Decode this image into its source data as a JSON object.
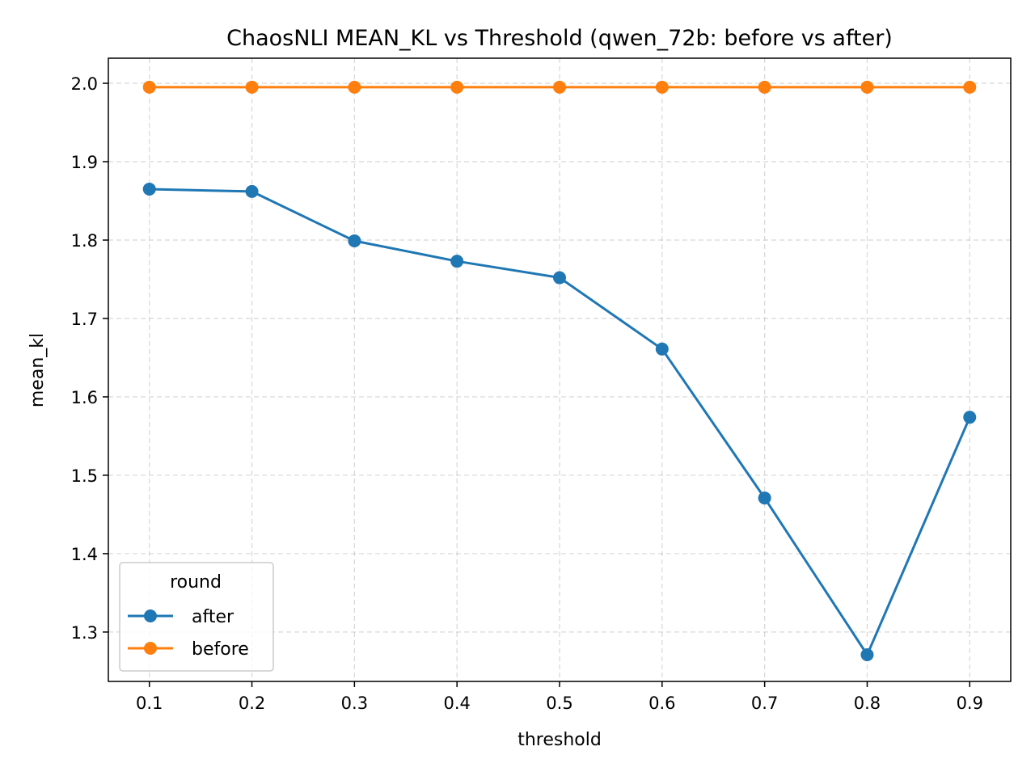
{
  "chart_data": {
    "type": "line",
    "title": "ChaosNLI MEAN_KL vs Threshold (qwen_72b: before vs after)",
    "xlabel": "threshold",
    "ylabel": "mean_kl",
    "x": [
      0.1,
      0.2,
      0.3,
      0.4,
      0.5,
      0.6,
      0.7,
      0.8,
      0.9
    ],
    "x_tick_labels": [
      "0.1",
      "0.2",
      "0.3",
      "0.4",
      "0.5",
      "0.6",
      "0.7",
      "0.8",
      "0.9"
    ],
    "xlim": [
      0.06,
      0.94
    ],
    "y_ticks": [
      1.3,
      1.4,
      1.5,
      1.6,
      1.7,
      1.8,
      1.9,
      2.0
    ],
    "y_tick_labels": [
      "1.3",
      "1.4",
      "1.5",
      "1.6",
      "1.7",
      "1.8",
      "1.9",
      "2.0"
    ],
    "ylim": [
      1.237,
      2.032
    ],
    "grid": true,
    "legend": {
      "title": "round",
      "placement": "lower-left"
    },
    "series": [
      {
        "name": "after",
        "color": "#1f77b4",
        "marker": "circle",
        "values": [
          1.865,
          1.862,
          1.799,
          1.773,
          1.752,
          1.661,
          1.471,
          1.271,
          1.574
        ]
      },
      {
        "name": "before",
        "color": "#ff7f0e",
        "marker": "circle",
        "values": [
          1.995,
          1.995,
          1.995,
          1.995,
          1.995,
          1.995,
          1.995,
          1.995,
          1.995
        ]
      }
    ]
  }
}
